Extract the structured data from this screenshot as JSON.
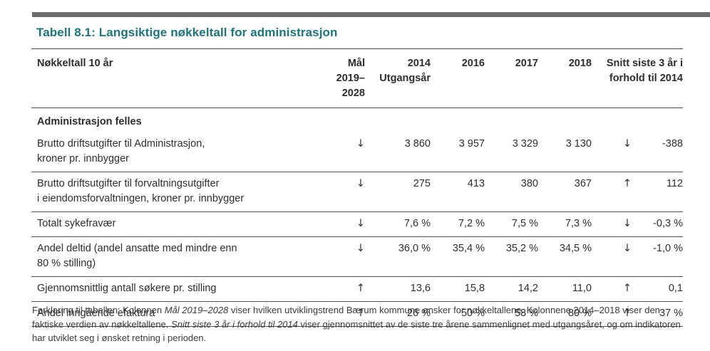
{
  "colors": {
    "accent_teal": "#1e737d",
    "top_bar_gray": "#6b6b6b",
    "rule_gray": "#4a4a4a"
  },
  "page": {
    "title": "Tabell 8.1: Langsiktige nøkkeltall for administrasjon"
  },
  "table": {
    "header": {
      "label": "Nøkkeltall 10 år",
      "mal_line1": "Mål",
      "mal_line2": "2019–2028",
      "y2014_line1": "2014",
      "y2014_line2": "Utgangsår",
      "y2016": "2016",
      "y2017": "2017",
      "y2018": "2018",
      "snitt_line1": "Snitt siste 3 år i",
      "snitt_line2": "forhold til 2014"
    },
    "section": "Administrasjon felles",
    "rows": [
      {
        "label": "Brutto driftsutgifter til Administrasjon,",
        "label2": "kroner pr. innbygger",
        "mal": "↓",
        "v2014": "3 860",
        "v2016": "3 957",
        "v2017": "3 329",
        "v2018": "3 130",
        "trend": "↓",
        "snitt": "-388"
      },
      {
        "label": "Brutto driftsutgifter til forvaltningsutgifter",
        "label2": "i eiendomsforvaltningen, kroner pr. innbygger",
        "mal": "↓",
        "v2014": "275",
        "v2016": "413",
        "v2017": "380",
        "v2018": "367",
        "trend": "↑",
        "snitt": "112"
      },
      {
        "label": "Totalt sykefravær",
        "label2": "",
        "mal": "↓",
        "v2014": "7,6 %",
        "v2016": "7,2 %",
        "v2017": "7,5 %",
        "v2018": "7,3 %",
        "trend": "↓",
        "snitt": "-0,3 %"
      },
      {
        "label": "Andel deltid (andel ansatte med mindre enn",
        "label2": "80 % stilling)",
        "mal": "↓",
        "v2014": "36,0 %",
        "v2016": "35,4 %",
        "v2017": "35,2 %",
        "v2018": "34,5 %",
        "trend": "↓",
        "snitt": "-1,0 %"
      },
      {
        "label": "Gjennomsnittlig antall søkere pr. stilling",
        "label2": "",
        "mal": "↑",
        "v2014": "13,6",
        "v2016": "15,8",
        "v2017": "14,2",
        "v2018": "11,0",
        "trend": "↑",
        "snitt": "0,1"
      },
      {
        "label": "Andel inngående efaktura",
        "label2": "",
        "mal": "↑",
        "v2014": "26 %",
        "v2016": "50 %",
        "v2017": "58 %",
        "v2018": "80 %",
        "trend": "↑",
        "snitt": "37 %"
      }
    ]
  },
  "footer": {
    "part1": "Forklaring til tabellen: Kolonnen ",
    "italic1": "Mål 2019–2028",
    "part2": " viser hvilken utviklingstrend Bærum kommune ønsker for nøkkeltallene. Kolonnene 2014–2018 viser den faktiske verdien av nøkkeltallene. ",
    "italic2": "Snitt siste 3 år i forhold til 2014",
    "part3": " viser gjennomsnittet av de siste tre årene sammenlignet med utgangsåret, og om indikatoren har utviklet seg i ønsket retning i perioden."
  }
}
